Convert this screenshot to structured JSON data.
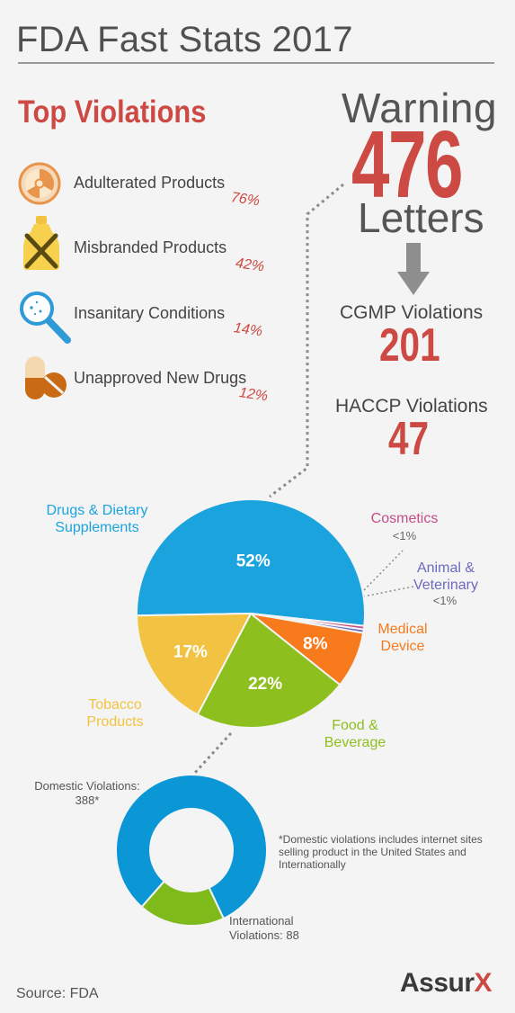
{
  "title": "FDA Fast Stats 2017",
  "top_violations": {
    "heading": "Top Violations",
    "items": [
      {
        "label": "Adulterated Products",
        "pct": "76%",
        "icon": "radiation-icon"
      },
      {
        "label": "Misbranded Products",
        "pct": "42%",
        "icon": "crossed-bottle-icon"
      },
      {
        "label": "Insanitary Conditions",
        "pct": "14%",
        "icon": "magnifier-germs-icon"
      },
      {
        "label": "Unapproved New Drugs",
        "pct": "12%",
        "icon": "pill-capsule-icon"
      }
    ]
  },
  "warning": {
    "word1": "Warning",
    "number": "476",
    "word2": "Letters",
    "cgmp_label": "CGMP Violations",
    "cgmp_value": "201",
    "haccp_label": "HACCP Violations",
    "haccp_value": "47"
  },
  "chart_data": [
    {
      "type": "pie",
      "slices": [
        {
          "label": "Drugs & Dietary Supplements",
          "value": 52,
          "display": "52%",
          "color": "#1ba3de"
        },
        {
          "label": "Cosmetics",
          "value": 0.5,
          "display": "<1%",
          "color": "#c44d8a"
        },
        {
          "label": "Animal & Veterinary",
          "value": 0.5,
          "display": "<1%",
          "color": "#6b6bbd"
        },
        {
          "label": "Medical Device",
          "value": 8,
          "display": "8%",
          "color": "#f77a1c"
        },
        {
          "label": "Food & Beverage",
          "value": 22,
          "display": "22%",
          "color": "#8dbf1f"
        },
        {
          "label": "Tobacco Products",
          "value": 17,
          "display": "17%",
          "color": "#f2c342"
        }
      ]
    },
    {
      "type": "pie",
      "slices": [
        {
          "label": "Domestic Violations: 388*",
          "value": 388,
          "color": "#0b96d6"
        },
        {
          "label": "International Violations: 88",
          "value": 88,
          "color": "#7dba1a"
        }
      ]
    }
  ],
  "pie_labels": {
    "drugs": "Drugs & Dietary Supplements",
    "cosmetics": "Cosmetics",
    "cosmetics_pct": "<1%",
    "animal": "Animal & Veterinary",
    "animal_pct": "<1%",
    "medical": "Medical Device",
    "food": "Food & Beverage",
    "tobacco": "Tobacco Products"
  },
  "donut_labels": {
    "domestic": "Domestic Violations: 388*",
    "international": "International Violations: 88",
    "footnote": "*Domestic violations includes internet sites selling product in the United States and Internationally"
  },
  "footer": {
    "source": "Source: FDA",
    "logo_main": "Assur",
    "logo_x": "X"
  },
  "colors": {
    "accent_red": "#cc4a43",
    "text_gray": "#444444",
    "background": "#f4f4f4"
  }
}
